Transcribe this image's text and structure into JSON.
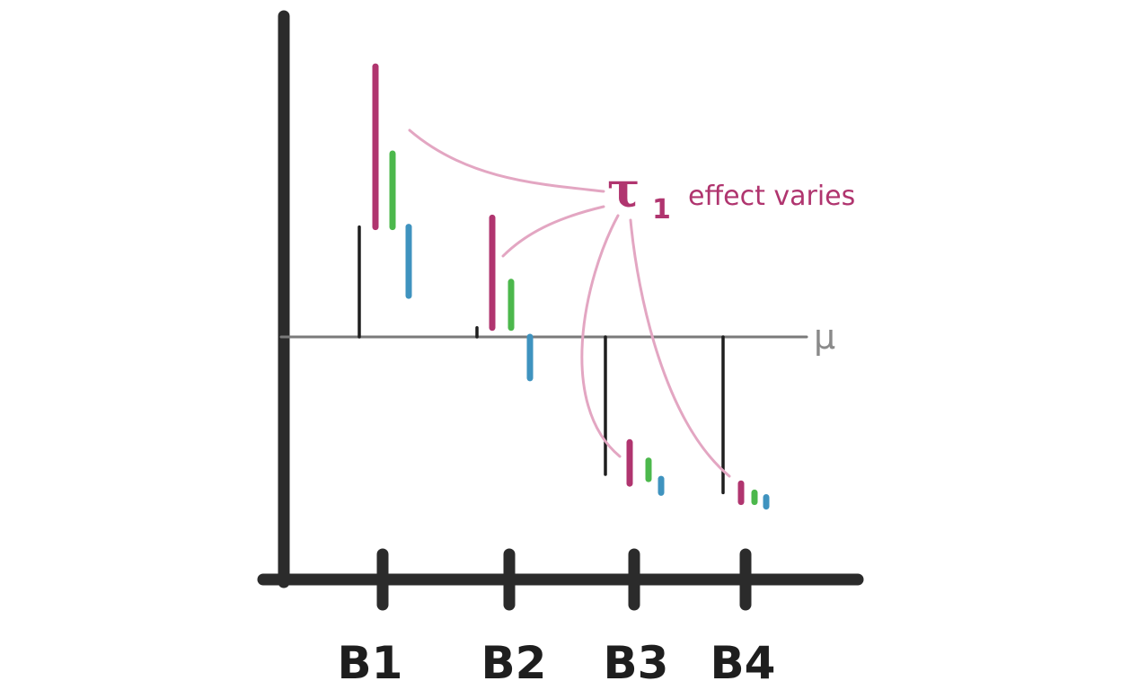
{
  "diagram": {
    "categories": [
      "B1",
      "B2",
      "B3",
      "B4"
    ],
    "baseline_label": "μ",
    "annotation": {
      "symbol": "τ",
      "subscript": "1",
      "text": "effect varies"
    },
    "colors": {
      "pink": "#b0356f",
      "green": "#4cb84c",
      "blue": "#3f93bf",
      "connector": "#e3a6c2",
      "axis": "#2b2b2b"
    },
    "groups": [
      {
        "category": "B1",
        "block_effect": 2.4,
        "pink": [
          2.4,
          5.9
        ],
        "green": [
          2.4,
          4.0
        ],
        "blue": [
          0.9,
          2.4
        ]
      },
      {
        "category": "B2",
        "block_effect": 0.2,
        "pink": [
          0.2,
          2.6
        ],
        "green": [
          0.2,
          1.2
        ],
        "blue": [
          -0.9,
          0.0
        ]
      },
      {
        "category": "B3",
        "block_effect": -3.0,
        "pink": [
          -3.2,
          -2.3
        ],
        "green": [
          -3.1,
          -2.7
        ],
        "blue": [
          -3.4,
          -3.1
        ]
      },
      {
        "category": "B4",
        "block_effect": -3.4,
        "pink": [
          -3.6,
          -3.2
        ],
        "green": [
          -3.6,
          -3.4
        ],
        "blue": [
          -3.7,
          -3.5
        ]
      }
    ]
  }
}
